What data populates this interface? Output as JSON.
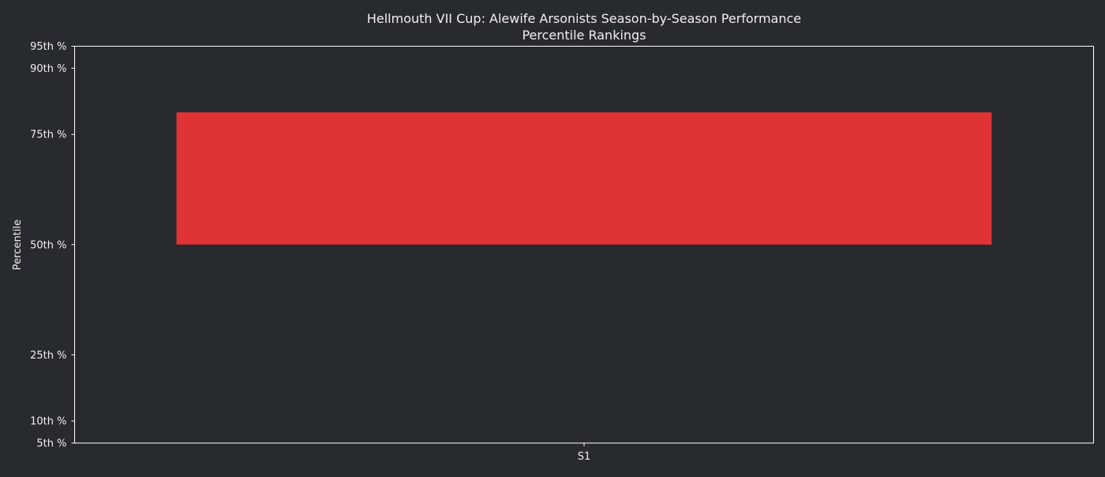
{
  "chart_data": {
    "type": "bar",
    "title": "Hellmouth VII Cup: Alewife Arsonists Season-by-Season Performance",
    "subtitle": "Percentile Rankings",
    "xlabel": "",
    "ylabel": "Percentile",
    "categories": [
      "S1"
    ],
    "bars": [
      {
        "category": "S1",
        "bottom": 50,
        "top": 80
      }
    ],
    "ylim": [
      5,
      95
    ],
    "yticks": [
      5,
      10,
      25,
      50,
      75,
      90,
      95
    ],
    "ytick_labels": [
      "5th %",
      "10th %",
      "25th %",
      "50th %",
      "75th %",
      "90th %",
      "95th %"
    ],
    "grid": false,
    "colors": {
      "bar": "#e03336",
      "background": "#272a2f",
      "axes": "#ffffff",
      "text": "#f0f0f0"
    }
  }
}
